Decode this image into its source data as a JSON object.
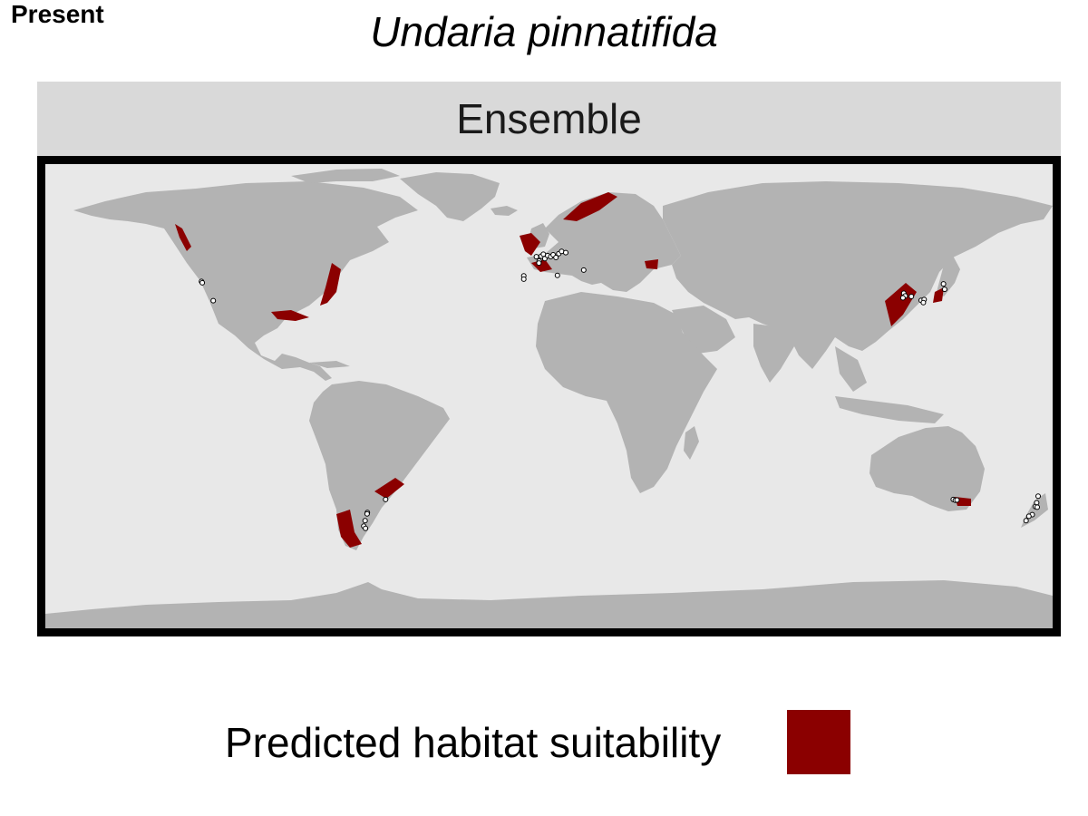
{
  "panel_tag": "Present",
  "title": "Undaria pinnatifida",
  "facet_label": "Ensemble",
  "legend": {
    "label": "Predicted habitat suitability",
    "color": "#8b0000"
  },
  "colors": {
    "ocean": "#e8e8e8",
    "land": "#b3b3b3",
    "frame": "#000000",
    "suitable": "#8b0000",
    "occurrence_fill": "#ffffff",
    "occurrence_stroke": "#000000"
  },
  "occurrences": [
    {
      "lon": -124.2,
      "lat": 41.3
    },
    {
      "lon": -123.9,
      "lat": 40.8
    },
    {
      "lon": -120.0,
      "lat": 34.3
    },
    {
      "lon": -9.0,
      "lat": 43.3
    },
    {
      "lon": -9.0,
      "lat": 42.1
    },
    {
      "lon": -4.5,
      "lat": 50.3
    },
    {
      "lon": -3.5,
      "lat": 48.7
    },
    {
      "lon": -2.8,
      "lat": 50.5
    },
    {
      "lon": -2.0,
      "lat": 51.2
    },
    {
      "lon": -1.5,
      "lat": 49.6
    },
    {
      "lon": -0.5,
      "lat": 50.7
    },
    {
      "lon": 0.6,
      "lat": 50.3
    },
    {
      "lon": 1.5,
      "lat": 51.0
    },
    {
      "lon": 2.5,
      "lat": 50.0
    },
    {
      "lon": 3.5,
      "lat": 51.4
    },
    {
      "lon": 4.5,
      "lat": 52.2
    },
    {
      "lon": 6.0,
      "lat": 51.8
    },
    {
      "lon": -3.6,
      "lat": 48.0
    },
    {
      "lon": 3.0,
      "lat": 43.5
    },
    {
      "lon": 12.4,
      "lat": 45.4
    },
    {
      "lon": 126.8,
      "lat": 37.0
    },
    {
      "lon": 127.3,
      "lat": 36.0
    },
    {
      "lon": 126.5,
      "lat": 35.3
    },
    {
      "lon": 129.5,
      "lat": 35.8
    },
    {
      "lon": 133.0,
      "lat": 34.4
    },
    {
      "lon": 134.1,
      "lat": 34.7
    },
    {
      "lon": 133.8,
      "lat": 33.6
    },
    {
      "lon": 141.0,
      "lat": 40.4
    },
    {
      "lon": 141.4,
      "lat": 38.4
    },
    {
      "lon": 144.5,
      "lat": -38.1
    },
    {
      "lon": 145.2,
      "lat": -38.4
    },
    {
      "lon": 145.8,
      "lat": -38.3
    },
    {
      "lon": 174.8,
      "lat": -36.9
    },
    {
      "lon": 174.3,
      "lat": -39.3
    },
    {
      "lon": 173.8,
      "lat": -40.7
    },
    {
      "lon": 174.5,
      "lat": -40.9
    },
    {
      "lon": 172.7,
      "lat": -43.6
    },
    {
      "lon": 171.5,
      "lat": -44.2
    },
    {
      "lon": 170.5,
      "lat": -45.8
    },
    {
      "lon": -58.4,
      "lat": -38.1
    },
    {
      "lon": -64.9,
      "lat": -42.8
    },
    {
      "lon": -65.0,
      "lat": -43.3
    },
    {
      "lon": -65.7,
      "lat": -45.8
    },
    {
      "lon": -66.2,
      "lat": -47.8
    },
    {
      "lon": -65.6,
      "lat": -48.6
    }
  ]
}
